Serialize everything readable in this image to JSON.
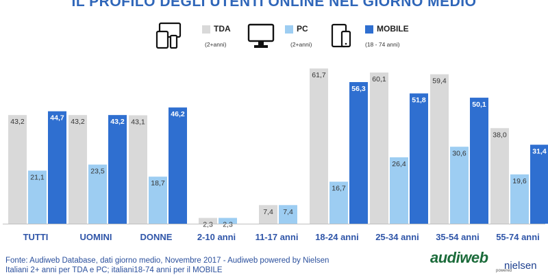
{
  "title": "IL PROFILO DEGLI UTENTI ONLINE NEL GIORNO MEDIO",
  "legend": [
    {
      "name": "TDA",
      "sub": "(2+anni)",
      "color": "#d9d9d9",
      "icon": "multi-device-icon"
    },
    {
      "name": "PC",
      "sub": "(2+anni)",
      "color": "#9dcdf2",
      "icon": "monitor-icon"
    },
    {
      "name": "MOBILE",
      "sub": "(18 - 74 anni)",
      "color": "#2f6fd0",
      "icon": "mobile-devices-icon"
    }
  ],
  "chart_data": {
    "type": "bar",
    "categories": [
      "TUTTI",
      "UOMINI",
      "DONNE",
      "2-10 anni",
      "11-17 anni",
      "18-24 anni",
      "25-34 anni",
      "35-54 anni",
      "55-74 anni"
    ],
    "series": [
      {
        "name": "TDA",
        "color": "#d9d9d9",
        "values": [
          43.2,
          43.2,
          43.1,
          2.3,
          7.4,
          61.7,
          60.1,
          59.4,
          38.0
        ],
        "labels": [
          "43,2",
          "43,2",
          "43,1",
          "2,3",
          "7,4",
          "61,7",
          "60,1",
          "59,4",
          "38,0"
        ]
      },
      {
        "name": "PC",
        "color": "#9dcdf2",
        "values": [
          21.1,
          23.5,
          18.7,
          2.3,
          7.4,
          16.7,
          26.4,
          30.6,
          19.6
        ],
        "labels": [
          "21,1",
          "23,5",
          "18,7",
          "2,3",
          "7,4",
          "16,7",
          "26,4",
          "30,6",
          "19,6"
        ]
      },
      {
        "name": "MOBILE",
        "color": "#2f6fd0",
        "values": [
          44.7,
          43.2,
          46.2,
          null,
          null,
          56.3,
          51.8,
          50.1,
          31.4
        ],
        "labels": [
          "44,7",
          "43,2",
          "46,2",
          "",
          "",
          "56,3",
          "51,8",
          "50,1",
          "31,4"
        ]
      }
    ],
    "ylim": [
      0,
      65
    ],
    "grid": false
  },
  "footer": {
    "source_line1": "Fonte: Audiweb Database, dati giorno medio, Novembre 2017 - Audiweb powered by Nielsen",
    "source_line2": "Italiani 2+ anni per TDA e PC; italiani18-74 anni per il MOBILE"
  },
  "logo": {
    "audi": "audiweb",
    "powered": "powered",
    "nielsen": "nielsen"
  }
}
